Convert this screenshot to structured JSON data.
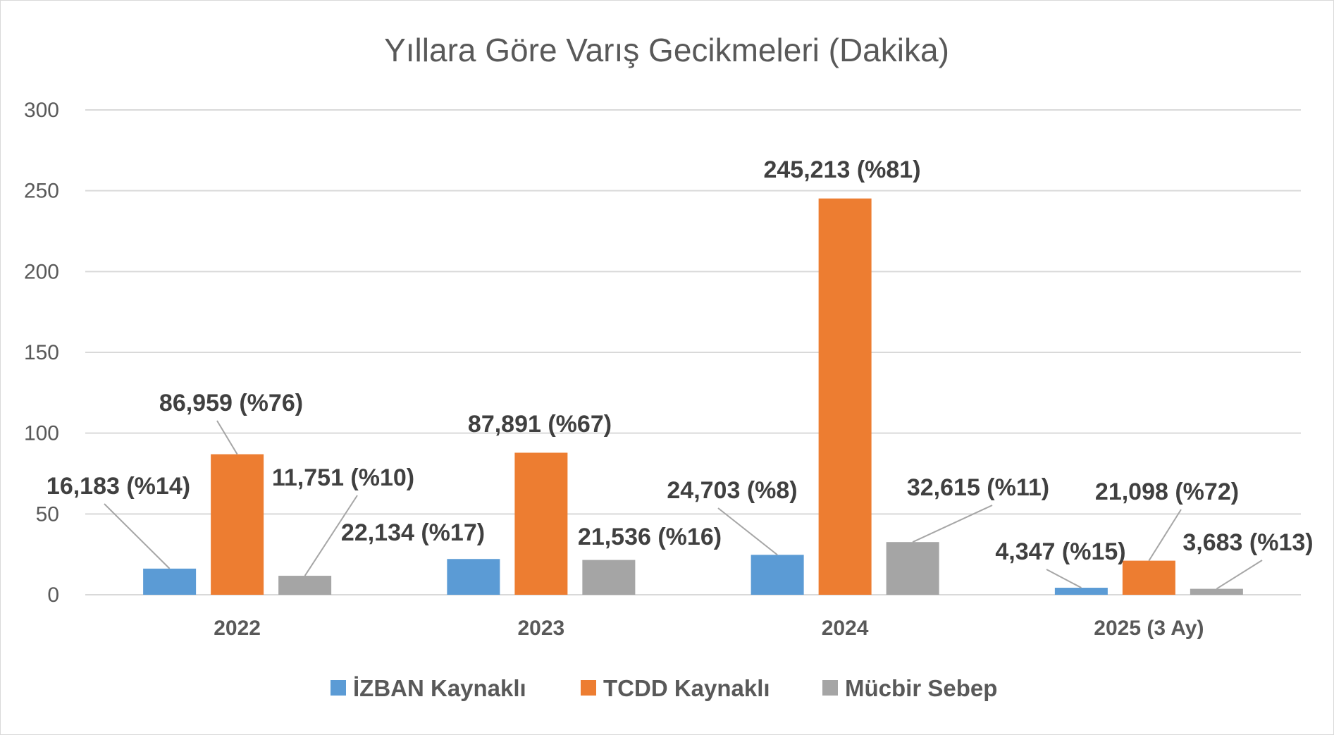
{
  "chart_data": {
    "type": "bar",
    "title": "Yıllara Göre Varış Gecikmeleri (Dakika)",
    "xlabel": "",
    "ylabel": "",
    "categories": [
      "2022",
      "2023",
      "2024",
      "2025 (3 Ay)"
    ],
    "ylim": [
      0,
      300
    ],
    "yticks": [
      0,
      50,
      100,
      150,
      200,
      250,
      300
    ],
    "grid": true,
    "legend_position": "bottom",
    "series": [
      {
        "name": "İZBAN Kaynaklı",
        "color": "#5b9bd5",
        "values": [
          16.183,
          22.134,
          24.703,
          4.347
        ],
        "labels": [
          "16,183 (%14)",
          "22,134 (%17)",
          "24,703 (%8)",
          "4,347 (%15)"
        ]
      },
      {
        "name": "TCDD Kaynaklı",
        "color": "#ed7d31",
        "values": [
          86.959,
          87.891,
          245.213,
          21.098
        ],
        "labels": [
          "86,959 (%76)",
          "87,891 (%67)",
          "245,213 (%81)",
          "21,098 (%72)"
        ]
      },
      {
        "name": "Mücbir Sebep",
        "color": "#a5a5a5",
        "values": [
          11.751,
          21.536,
          32.615,
          3.683
        ],
        "labels": [
          "11,751 (%10)",
          "21,536 (%16)",
          "32,615 (%11)",
          "3,683 (%13)"
        ]
      }
    ]
  }
}
